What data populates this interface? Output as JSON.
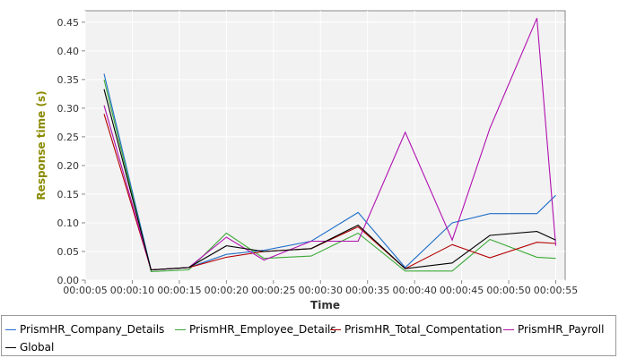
{
  "chart_data": {
    "type": "line",
    "xlabel": "Time",
    "ylabel": "Response time (s)",
    "xticks": [
      "00:00:05",
      "00:00:10",
      "00:00:15",
      "00:00:20",
      "00:00:25",
      "00:00:30",
      "00:00:35",
      "00:00:40",
      "00:00:45",
      "00:00:50",
      "00:00:55"
    ],
    "yticks": [
      "0.00",
      "0.05",
      "0.10",
      "0.15",
      "0.20",
      "0.25",
      "0.30",
      "0.35",
      "0.40",
      "0.45"
    ],
    "xlim": [
      "00:00:05",
      "00:00:56"
    ],
    "ylim": [
      0,
      0.47
    ],
    "grid": true,
    "legend_position": "bottom",
    "x": [
      "00:00:07",
      "00:00:12",
      "00:00:16",
      "00:00:20",
      "00:00:24",
      "00:00:29",
      "00:00:34",
      "00:00:39",
      "00:00:44",
      "00:00:48",
      "00:00:53",
      "00:00:55"
    ],
    "series": [
      {
        "name": "PrismHR_Company_Details",
        "color": "#1f6ec9",
        "values": [
          0.36,
          0.018,
          0.022,
          0.045,
          0.052,
          0.068,
          0.118,
          0.022,
          0.1,
          0.116,
          0.116,
          0.148
        ]
      },
      {
        "name": "PrismHR_Employee_Details",
        "color": "#3caa37",
        "values": [
          0.35,
          0.015,
          0.018,
          0.082,
          0.038,
          0.042,
          0.082,
          0.016,
          0.016,
          0.071,
          0.04,
          0.038
        ]
      },
      {
        "name": "PrismHR_Total_Compentation",
        "color": "#b30000",
        "values": [
          0.29,
          0.018,
          0.022,
          0.04,
          0.05,
          0.055,
          0.093,
          0.02,
          0.062,
          0.039,
          0.066,
          0.064
        ]
      },
      {
        "name": "PrismHR_Payroll",
        "color": "#b010b0",
        "values": [
          0.305,
          0.018,
          0.022,
          0.075,
          0.035,
          0.068,
          0.068,
          0.258,
          0.07,
          0.265,
          0.457,
          0.06
        ]
      },
      {
        "name": "Global",
        "color": "#000000",
        "values": [
          0.333,
          0.018,
          0.022,
          0.06,
          0.05,
          0.055,
          0.096,
          0.02,
          0.03,
          0.078,
          0.085,
          0.07
        ]
      }
    ]
  }
}
